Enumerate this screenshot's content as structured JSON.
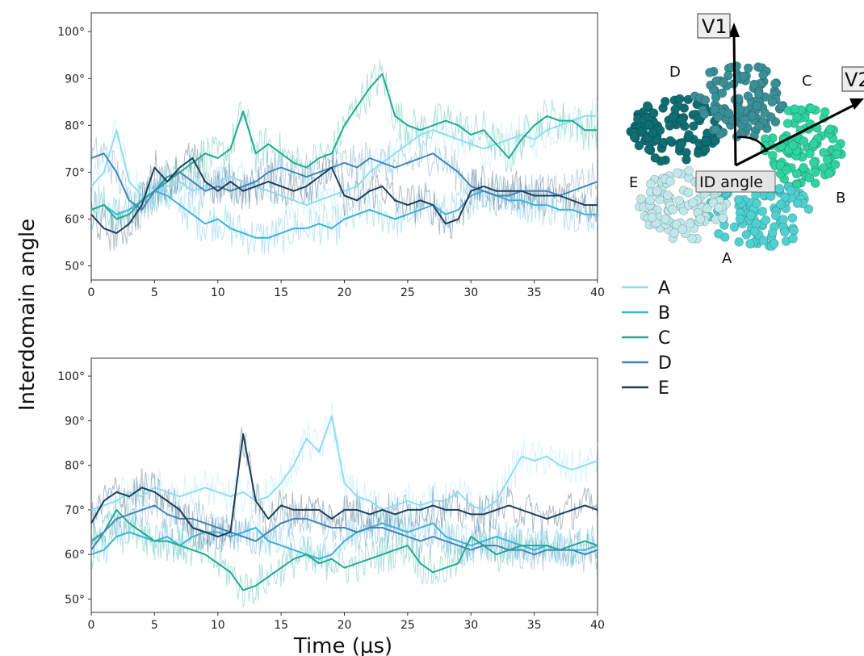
{
  "figure": {
    "ylabel": "Interdomain angle",
    "xlabel": "Time (µs)"
  },
  "colors": {
    "A": "#8fdcf5",
    "B": "#39b3e0",
    "C": "#1eab92",
    "D": "#3e87b8",
    "E": "#1b3f5c"
  },
  "legend": {
    "entries": [
      {
        "label": "A",
        "color": "#8fdcf5"
      },
      {
        "label": "B",
        "color": "#39b3e0"
      },
      {
        "label": "C",
        "color": "#1eab92"
      },
      {
        "label": "D",
        "color": "#3e87b8"
      },
      {
        "label": "E",
        "color": "#1b3f5c"
      }
    ]
  },
  "structure": {
    "vector_labels": [
      "V1",
      "V2"
    ],
    "angle_label": "ID angle",
    "domain_labels": [
      "D",
      "C",
      "E",
      "B",
      "A"
    ],
    "domain_colors": {
      "A": "#4fd0d0",
      "B": "#2ed39e",
      "C": "#3a8f96",
      "D": "#0f6e72",
      "E": "#bfe8ea"
    }
  },
  "chart_data": [
    {
      "type": "line",
      "xlim": [
        0,
        40
      ],
      "ylim": [
        47,
        104
      ],
      "xticks": [
        "0",
        "5",
        "10",
        "15",
        "20",
        "25",
        "30",
        "35",
        "40"
      ],
      "yticks": [
        "50°",
        "60°",
        "70°",
        "80°",
        "90°",
        "100°"
      ],
      "x": [
        0,
        1,
        2,
        3,
        4,
        5,
        6,
        7,
        8,
        9,
        10,
        11,
        12,
        13,
        14,
        15,
        16,
        17,
        18,
        19,
        20,
        21,
        22,
        23,
        24,
        25,
        26,
        27,
        28,
        29,
        30,
        31,
        32,
        33,
        34,
        35,
        36,
        37,
        38,
        39,
        40
      ],
      "series": [
        {
          "name": "A",
          "values": [
            67,
            70,
            79,
            68,
            65,
            66,
            67,
            68,
            66,
            67,
            68,
            69,
            68,
            67,
            66,
            65,
            64,
            63,
            64,
            65,
            66,
            67,
            70,
            72,
            74,
            76,
            78,
            79,
            78,
            77,
            76,
            75,
            76,
            77,
            78,
            77,
            79,
            80,
            81,
            82,
            82
          ]
        },
        {
          "name": "B",
          "values": [
            62,
            63,
            61,
            62,
            64,
            66,
            65,
            63,
            61,
            59,
            60,
            58,
            57,
            56,
            56,
            57,
            58,
            58,
            59,
            58,
            60,
            61,
            62,
            61,
            60,
            61,
            62,
            63,
            61,
            62,
            65,
            66,
            65,
            64,
            64,
            63,
            63,
            62,
            62,
            61,
            61
          ]
        },
        {
          "name": "C",
          "values": [
            62,
            63,
            60,
            61,
            64,
            66,
            68,
            70,
            72,
            74,
            73,
            75,
            83,
            74,
            76,
            74,
            72,
            71,
            73,
            74,
            80,
            84,
            88,
            91,
            82,
            80,
            79,
            80,
            81,
            80,
            78,
            79,
            76,
            73,
            77,
            80,
            82,
            81,
            81,
            79,
            79
          ]
        },
        {
          "name": "D",
          "values": [
            73,
            74,
            70,
            64,
            62,
            66,
            69,
            70,
            68,
            66,
            67,
            66,
            67,
            68,
            70,
            71,
            70,
            69,
            70,
            71,
            72,
            71,
            73,
            72,
            71,
            72,
            73,
            74,
            72,
            70,
            67,
            66,
            65,
            65,
            66,
            66,
            66,
            65,
            66,
            67,
            68
          ]
        },
        {
          "name": "E",
          "values": [
            61,
            58,
            57,
            59,
            63,
            71,
            68,
            71,
            73,
            68,
            66,
            68,
            66,
            67,
            68,
            67,
            66,
            67,
            69,
            71,
            65,
            64,
            66,
            67,
            64,
            63,
            64,
            63,
            59,
            60,
            66,
            67,
            66,
            66,
            66,
            65,
            65,
            65,
            64,
            63,
            63
          ]
        }
      ]
    },
    {
      "type": "line",
      "xlim": [
        0,
        40
      ],
      "ylim": [
        47,
        104
      ],
      "xticks": [
        "0",
        "5",
        "10",
        "15",
        "20",
        "25",
        "30",
        "35",
        "40"
      ],
      "yticks": [
        "50°",
        "60°",
        "70°",
        "80°",
        "90°",
        "100°"
      ],
      "x": [
        0,
        1,
        2,
        3,
        4,
        5,
        6,
        7,
        8,
        9,
        10,
        11,
        12,
        13,
        14,
        15,
        16,
        17,
        18,
        19,
        20,
        21,
        22,
        23,
        24,
        25,
        26,
        27,
        28,
        29,
        30,
        31,
        32,
        33,
        34,
        35,
        36,
        37,
        38,
        39,
        40
      ],
      "series": [
        {
          "name": "A",
          "values": [
            70,
            71,
            72,
            74,
            73,
            75,
            74,
            73,
            74,
            75,
            74,
            73,
            74,
            72,
            73,
            76,
            80,
            86,
            83,
            91,
            76,
            73,
            72,
            70,
            71,
            72,
            71,
            72,
            72,
            74,
            71,
            70,
            72,
            77,
            82,
            81,
            82,
            80,
            79,
            80,
            81
          ]
        },
        {
          "name": "B",
          "values": [
            60,
            61,
            64,
            65,
            64,
            63,
            64,
            62,
            64,
            65,
            65,
            64,
            65,
            66,
            63,
            62,
            61,
            60,
            59,
            60,
            63,
            65,
            66,
            67,
            66,
            65,
            66,
            67,
            64,
            63,
            62,
            63,
            64,
            63,
            62,
            61,
            62,
            61,
            61,
            61,
            62
          ]
        },
        {
          "name": "C",
          "values": [
            63,
            65,
            70,
            67,
            65,
            63,
            63,
            62,
            61,
            60,
            58,
            56,
            52,
            53,
            55,
            57,
            59,
            60,
            58,
            59,
            57,
            58,
            59,
            60,
            61,
            62,
            58,
            56,
            57,
            58,
            64,
            62,
            60,
            61,
            62,
            62,
            62,
            61,
            62,
            63,
            62
          ]
        },
        {
          "name": "D",
          "values": [
            61,
            65,
            68,
            69,
            70,
            71,
            69,
            68,
            68,
            67,
            66,
            65,
            64,
            63,
            65,
            67,
            68,
            68,
            67,
            66,
            66,
            65,
            66,
            66,
            65,
            64,
            63,
            64,
            63,
            62,
            61,
            62,
            62,
            61,
            61,
            60,
            61,
            61,
            61,
            60,
            61
          ]
        },
        {
          "name": "E",
          "values": [
            67,
            72,
            74,
            73,
            75,
            74,
            72,
            70,
            66,
            65,
            64,
            65,
            87,
            72,
            68,
            71,
            70,
            70,
            70,
            68,
            70,
            70,
            69,
            70,
            69,
            70,
            70,
            71,
            70,
            70,
            69,
            69,
            70,
            71,
            70,
            69,
            68,
            69,
            70,
            71,
            70
          ]
        }
      ]
    }
  ]
}
